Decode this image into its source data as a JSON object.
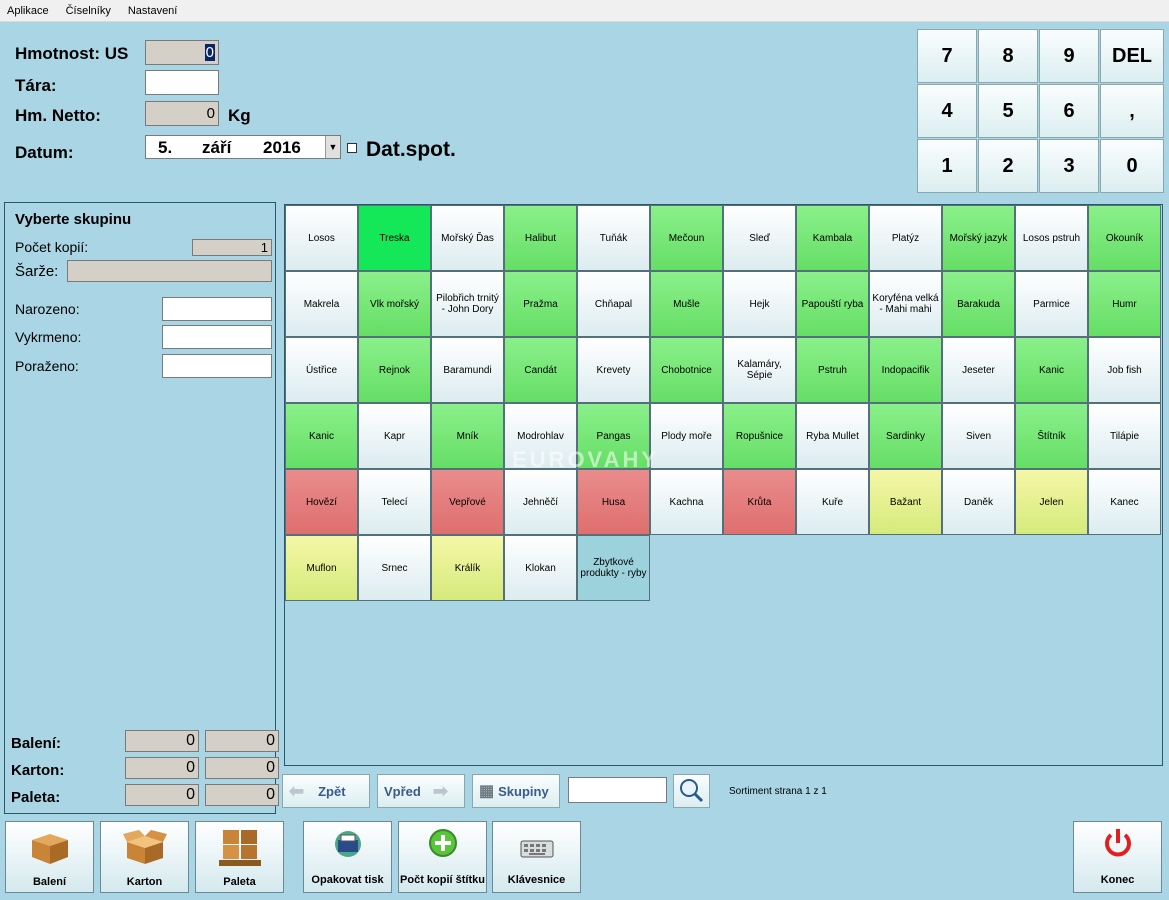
{
  "menu": [
    "Aplikace",
    "Číselníky",
    "Nastavení"
  ],
  "form": {
    "hmotnost_label": "Hmotnost: US",
    "hmotnost_value": "0",
    "tara_label": "Tára:",
    "tara_value": "",
    "netto_label": "Hm. Netto:",
    "netto_value": "0",
    "netto_unit": "Kg",
    "datum_label": "Datum:",
    "date_day": "5.",
    "date_month": "září",
    "date_year": "2016",
    "datspot_label": "Dat.spot."
  },
  "keypad": [
    "7",
    "8",
    "9",
    "DEL",
    "4",
    "5",
    "6",
    ",",
    "1",
    "2",
    "3",
    "0"
  ],
  "left_panel": {
    "title": "Vyberte skupinu",
    "kopie_label": "Počet kopií:",
    "kopie_value": "1",
    "sarze_label": "Šarže:",
    "narozeno_label": "Narozeno:",
    "vykrmeno_label": "Vykrmeno:",
    "porazeno_label": "Poraženo:",
    "baleni_label": "Balení:",
    "karton_label": "Karton:",
    "paleta_label": "Paleta:",
    "baleni_a": "0",
    "baleni_b": "0",
    "karton_a": "0",
    "karton_b": "0",
    "paleta_a": "0",
    "paleta_b": "0"
  },
  "tiles": [
    {
      "label": "Losos",
      "color": "w"
    },
    {
      "label": "Treska",
      "color": "G"
    },
    {
      "label": "Mořský Ďas",
      "color": "w"
    },
    {
      "label": "Halibut",
      "color": "g"
    },
    {
      "label": "Tuňák",
      "color": "w"
    },
    {
      "label": "Mečoun",
      "color": "g"
    },
    {
      "label": "Sleď",
      "color": "w"
    },
    {
      "label": "Kambala",
      "color": "g"
    },
    {
      "label": "Platýz",
      "color": "w"
    },
    {
      "label": "Mořský jazyk",
      "color": "g"
    },
    {
      "label": "Losos pstruh",
      "color": "w"
    },
    {
      "label": "Okouník",
      "color": "g"
    },
    {
      "label": "Makrela",
      "color": "w"
    },
    {
      "label": "Vlk mořský",
      "color": "g"
    },
    {
      "label": "Pilobřich trnitý - John Dory",
      "color": "w"
    },
    {
      "label": "Pražma",
      "color": "g"
    },
    {
      "label": "Chňapal",
      "color": "w"
    },
    {
      "label": "Mušle",
      "color": "g"
    },
    {
      "label": "Hejk",
      "color": "w"
    },
    {
      "label": "Papouští ryba",
      "color": "g"
    },
    {
      "label": "Koryféna velká - Mahi mahi",
      "color": "w"
    },
    {
      "label": "Barakuda",
      "color": "g"
    },
    {
      "label": "Parmice",
      "color": "w"
    },
    {
      "label": "Humr",
      "color": "g"
    },
    {
      "label": "Ústřice",
      "color": "w"
    },
    {
      "label": "Rejnok",
      "color": "g"
    },
    {
      "label": "Baramundi",
      "color": "w"
    },
    {
      "label": "Candát",
      "color": "g"
    },
    {
      "label": "Krevety",
      "color": "w"
    },
    {
      "label": "Chobotnice",
      "color": "g"
    },
    {
      "label": "Kalamáry, Sépie",
      "color": "w"
    },
    {
      "label": "Pstruh",
      "color": "g"
    },
    {
      "label": "Indopacifik",
      "color": "g"
    },
    {
      "label": "Jeseter",
      "color": "w"
    },
    {
      "label": "Kanic",
      "color": "g"
    },
    {
      "label": "Job fish",
      "color": "w"
    },
    {
      "label": "Kanic",
      "color": "g"
    },
    {
      "label": "Kapr",
      "color": "w"
    },
    {
      "label": "Mník",
      "color": "g"
    },
    {
      "label": "Modrohlav",
      "color": "w"
    },
    {
      "label": "Pangas",
      "color": "g"
    },
    {
      "label": "Plody moře",
      "color": "w"
    },
    {
      "label": "Ropušnice",
      "color": "g"
    },
    {
      "label": "Ryba Mullet",
      "color": "w"
    },
    {
      "label": "Sardinky",
      "color": "g"
    },
    {
      "label": "Siven",
      "color": "w"
    },
    {
      "label": "Štítník",
      "color": "g"
    },
    {
      "label": "Tilápie",
      "color": "w"
    },
    {
      "label": "Hovězí",
      "color": "r"
    },
    {
      "label": "Telecí",
      "color": "w"
    },
    {
      "label": "Vepřové",
      "color": "r"
    },
    {
      "label": "Jehněčí",
      "color": "w"
    },
    {
      "label": "Husa",
      "color": "r"
    },
    {
      "label": "Kachna",
      "color": "w"
    },
    {
      "label": "Krůta",
      "color": "r"
    },
    {
      "label": "Kuře",
      "color": "w"
    },
    {
      "label": "Bažant",
      "color": "y"
    },
    {
      "label": "Daněk",
      "color": "w"
    },
    {
      "label": "Jelen",
      "color": "y"
    },
    {
      "label": "Kanec",
      "color": "w"
    },
    {
      "label": "Muflon",
      "color": "y"
    },
    {
      "label": "Srnec",
      "color": "w"
    },
    {
      "label": "Králík",
      "color": "y"
    },
    {
      "label": "Klokan",
      "color": "w"
    },
    {
      "label": "Zbytkové produkty - ryby",
      "color": "b"
    }
  ],
  "watermark": "EUROVAHY",
  "nav": {
    "back_label": "Zpět",
    "forward_label": "Vpřed",
    "groups_label": "Skupiny",
    "search_value": "",
    "page_info": "Sortiment strana 1 z 1"
  },
  "bottom": {
    "baleni": "Balení",
    "karton": "Karton",
    "paleta": "Paleta",
    "opakovat": "Opakovat tisk",
    "pocet": "Počt kopií štítku",
    "klavesnice": "Klávesnice",
    "konec": "Konec"
  }
}
